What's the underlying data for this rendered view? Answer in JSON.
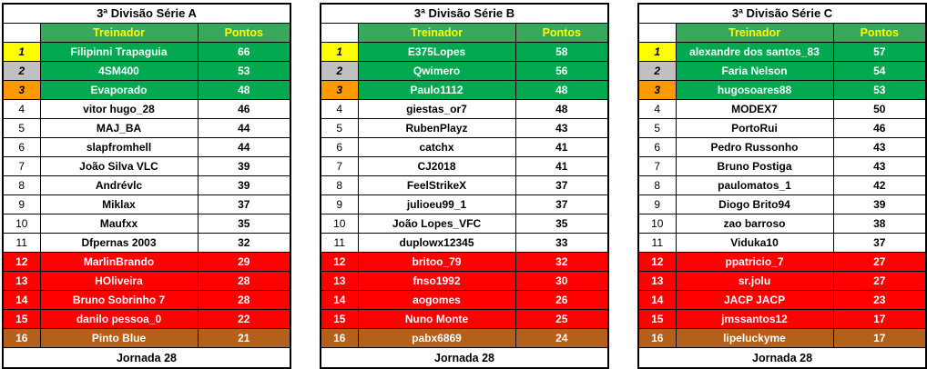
{
  "colors": {
    "header_green": "#3aa85c",
    "row_green": "#00a950",
    "header_text_yellow": "#ffff00",
    "pos1_yellow": "#ffff00",
    "pos2_silver": "#c0c0c0",
    "pos3_orange": "#ff9900",
    "relegation_red": "#ff0000",
    "last_brown": "#b4601a"
  },
  "columns": {
    "treinador": "Treinador",
    "pontos": "Pontos"
  },
  "footer_label": "Jornada 28",
  "tables": [
    {
      "title": "3ª Divisão Série A",
      "rows": [
        {
          "pos": 1,
          "name": "Filipinni Trapaguia",
          "points": 66
        },
        {
          "pos": 2,
          "name": "4SM400",
          "points": 53
        },
        {
          "pos": 3,
          "name": "Evaporado",
          "points": 48
        },
        {
          "pos": 4,
          "name": "vitor hugo_28",
          "points": 46
        },
        {
          "pos": 5,
          "name": "MAJ_BA",
          "points": 44
        },
        {
          "pos": 6,
          "name": "slapfromhell",
          "points": 44
        },
        {
          "pos": 7,
          "name": "João Silva VLC",
          "points": 39
        },
        {
          "pos": 8,
          "name": "Andrévlc",
          "points": 39
        },
        {
          "pos": 9,
          "name": "Miklax",
          "points": 37
        },
        {
          "pos": 10,
          "name": "Maufxx",
          "points": 35
        },
        {
          "pos": 11,
          "name": "Dfpernas 2003",
          "points": 32
        },
        {
          "pos": 12,
          "name": "MarlinBrando",
          "points": 29
        },
        {
          "pos": 13,
          "name": "HOliveira",
          "points": 28
        },
        {
          "pos": 14,
          "name": "Bruno Sobrinho 7",
          "points": 28
        },
        {
          "pos": 15,
          "name": "danilo pessoa_0",
          "points": 22
        },
        {
          "pos": 16,
          "name": "Pinto Blue",
          "points": 21
        }
      ]
    },
    {
      "title": "3ª Divisão Série B",
      "rows": [
        {
          "pos": 1,
          "name": "E375Lopes",
          "points": 58
        },
        {
          "pos": 2,
          "name": "Qwimero",
          "points": 56
        },
        {
          "pos": 3,
          "name": "Paulo1112",
          "points": 48
        },
        {
          "pos": 4,
          "name": "giestas_or7",
          "points": 48
        },
        {
          "pos": 5,
          "name": "RubenPlayz",
          "points": 43
        },
        {
          "pos": 6,
          "name": "catchx",
          "points": 41
        },
        {
          "pos": 7,
          "name": "CJ2018",
          "points": 41
        },
        {
          "pos": 8,
          "name": "FeelStrikeX",
          "points": 37
        },
        {
          "pos": 9,
          "name": "julioeu99_1",
          "points": 37
        },
        {
          "pos": 10,
          "name": "João Lopes_VFC",
          "points": 35
        },
        {
          "pos": 11,
          "name": "duplowx12345",
          "points": 33
        },
        {
          "pos": 12,
          "name": "britoo_79",
          "points": 32
        },
        {
          "pos": 13,
          "name": "fnso1992",
          "points": 30
        },
        {
          "pos": 14,
          "name": "aogomes",
          "points": 26
        },
        {
          "pos": 15,
          "name": "Nuno Monte",
          "points": 25
        },
        {
          "pos": 16,
          "name": "pabx6869",
          "points": 24
        }
      ]
    },
    {
      "title": "3ª Divisão Série C",
      "rows": [
        {
          "pos": 1,
          "name": "alexandre dos santos_83",
          "points": 57
        },
        {
          "pos": 2,
          "name": "Faria Nelson",
          "points": 54
        },
        {
          "pos": 3,
          "name": "hugosoares88",
          "points": 53
        },
        {
          "pos": 4,
          "name": "MODEX7",
          "points": 50
        },
        {
          "pos": 5,
          "name": "PortoRui",
          "points": 46
        },
        {
          "pos": 6,
          "name": "Pedro Russonho",
          "points": 43
        },
        {
          "pos": 7,
          "name": "Bruno Postiga",
          "points": 43
        },
        {
          "pos": 8,
          "name": "paulomatos_1",
          "points": 42
        },
        {
          "pos": 9,
          "name": "Diogo Brito94",
          "points": 39
        },
        {
          "pos": 10,
          "name": "zao barroso",
          "points": 38
        },
        {
          "pos": 11,
          "name": "Viduka10",
          "points": 37
        },
        {
          "pos": 12,
          "name": "ppatricio_7",
          "points": 27
        },
        {
          "pos": 13,
          "name": "sr.jolu",
          "points": 27
        },
        {
          "pos": 14,
          "name": "JACP JACP",
          "points": 23
        },
        {
          "pos": 15,
          "name": "jmssantos12",
          "points": 17
        },
        {
          "pos": 16,
          "name": "lipeluckyme",
          "points": 17
        }
      ]
    }
  ]
}
